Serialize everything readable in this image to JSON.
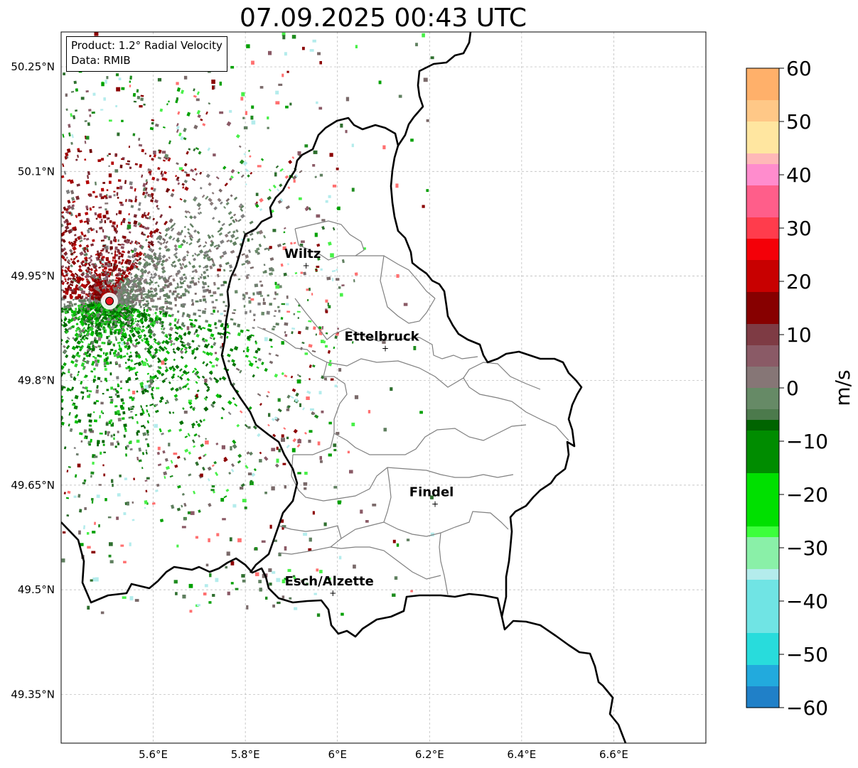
{
  "title": "07.09.2025 00:43 UTC",
  "info": {
    "product": "Product: 1.2° Radial Velocity",
    "source": "Data: RMIB"
  },
  "axes": {
    "lon_range": [
      5.4,
      6.8
    ],
    "lat_range": [
      49.28,
      50.3
    ],
    "lon_ticks": [
      {
        "value": 5.6,
        "label": "5.6°E"
      },
      {
        "value": 5.8,
        "label": "5.8°E"
      },
      {
        "value": 6.0,
        "label": "6°E"
      },
      {
        "value": 6.2,
        "label": "6.2°E"
      },
      {
        "value": 6.4,
        "label": "6.4°E"
      },
      {
        "value": 6.6,
        "label": "6.6°E"
      }
    ],
    "lat_ticks": [
      {
        "value": 50.25,
        "label": "50.25°N"
      },
      {
        "value": 50.1,
        "label": "50.1°N"
      },
      {
        "value": 49.95,
        "label": "49.95°N"
      },
      {
        "value": 49.8,
        "label": "49.8°N"
      },
      {
        "value": 49.65,
        "label": "49.65°N"
      },
      {
        "value": 49.5,
        "label": "49.5°N"
      },
      {
        "value": 49.35,
        "label": "49.35°N"
      }
    ],
    "grid": true
  },
  "radar": {
    "lon": 5.505,
    "lat": 49.914,
    "color": "#e8141c"
  },
  "cities": [
    {
      "name": "Wiltz",
      "lon": 5.932,
      "lat": 49.966
    },
    {
      "name": "Ettelbruck",
      "lon": 6.104,
      "lat": 49.847
    },
    {
      "name": "Findel",
      "lon": 6.212,
      "lat": 49.624
    },
    {
      "name": "Esch/Alzette",
      "lon": 5.99,
      "lat": 49.496
    }
  ],
  "colorbar": {
    "unit": "m/s",
    "min": -60,
    "max": 60,
    "tick_values": [
      60,
      50,
      40,
      30,
      20,
      10,
      0,
      -10,
      -20,
      -30,
      -40,
      -50,
      -60
    ],
    "tick_labels": [
      "60",
      "50",
      "40",
      "30",
      "20",
      "10",
      "0",
      "−10",
      "−20",
      "−30",
      "−40",
      "−50",
      "−60"
    ],
    "stops": [
      {
        "v": 60,
        "c": "#ff9e58"
      },
      {
        "v": 55,
        "c": "#ffb06a"
      },
      {
        "v": 50,
        "c": "#ffc887"
      },
      {
        "v": 45,
        "c": "#ffe6a0"
      },
      {
        "v": 42,
        "c": "#ffb8b8"
      },
      {
        "v": 38,
        "c": "#ff8ccd"
      },
      {
        "v": 33,
        "c": "#ff5e8a"
      },
      {
        "v": 28,
        "c": "#ff3c4c"
      },
      {
        "v": 25,
        "c": "#f40008"
      },
      {
        "v": 18,
        "c": "#c80000"
      },
      {
        "v": 12,
        "c": "#870000"
      },
      {
        "v": 9,
        "c": "#7e3b44"
      },
      {
        "v": 5,
        "c": "#8a5a66"
      },
      {
        "v": 1,
        "c": "#867676"
      },
      {
        "v": -3,
        "c": "#668a66"
      },
      {
        "v": -6,
        "c": "#4c7a4c"
      },
      {
        "v": -8,
        "c": "#006400"
      },
      {
        "v": -15,
        "c": "#008c00"
      },
      {
        "v": -25,
        "c": "#00e000"
      },
      {
        "v": -28,
        "c": "#3cff3c"
      },
      {
        "v": -33,
        "c": "#8af0a8"
      },
      {
        "v": -36,
        "c": "#b4ecec"
      },
      {
        "v": -45,
        "c": "#70e4e4"
      },
      {
        "v": -52,
        "c": "#28dcdc"
      },
      {
        "v": -55,
        "c": "#22aadd"
      },
      {
        "v": -60,
        "c": "#2080c8"
      }
    ]
  },
  "colors": {
    "border": "#000000",
    "cantons": "#808080",
    "grid": "#b4b4b4"
  }
}
